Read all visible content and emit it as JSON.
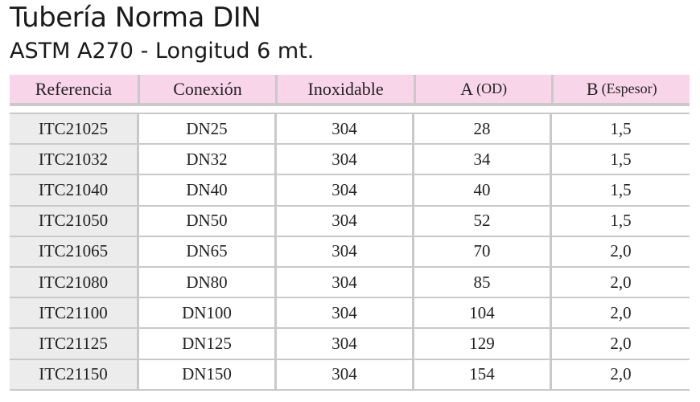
{
  "title": "Tubería Norma DIN",
  "subtitle": "ASTM A270 - Longitud 6 mt.",
  "table": {
    "headers": {
      "referencia": "Referencia",
      "conexion": "Conexión",
      "inoxidable": "Inoxidable",
      "a_main": "A",
      "a_sub": "(OD)",
      "b_main": "B",
      "b_sub": "(Espesor)"
    },
    "rows": [
      {
        "ref": "ITC21025",
        "con": "DN25",
        "inox": "304",
        "a": "28",
        "b": "1,5"
      },
      {
        "ref": "ITC21032",
        "con": "DN32",
        "inox": "304",
        "a": "34",
        "b": "1,5"
      },
      {
        "ref": "ITC21040",
        "con": "DN40",
        "inox": "304",
        "a": "40",
        "b": "1,5"
      },
      {
        "ref": "ITC21050",
        "con": "DN50",
        "inox": "304",
        "a": "52",
        "b": "1,5"
      },
      {
        "ref": "ITC21065",
        "con": "DN65",
        "inox": "304",
        "a": "70",
        "b": "2,0"
      },
      {
        "ref": "ITC21080",
        "con": "DN80",
        "inox": "304",
        "a": "85",
        "b": "2,0"
      },
      {
        "ref": "ITC21100",
        "con": "DN100",
        "inox": "304",
        "a": "104",
        "b": "2,0"
      },
      {
        "ref": "ITC21125",
        "con": "DN125",
        "inox": "304",
        "a": "129",
        "b": "2,0"
      },
      {
        "ref": "ITC21150",
        "con": "DN150",
        "inox": "304",
        "a": "154",
        "b": "2,0"
      }
    ]
  }
}
